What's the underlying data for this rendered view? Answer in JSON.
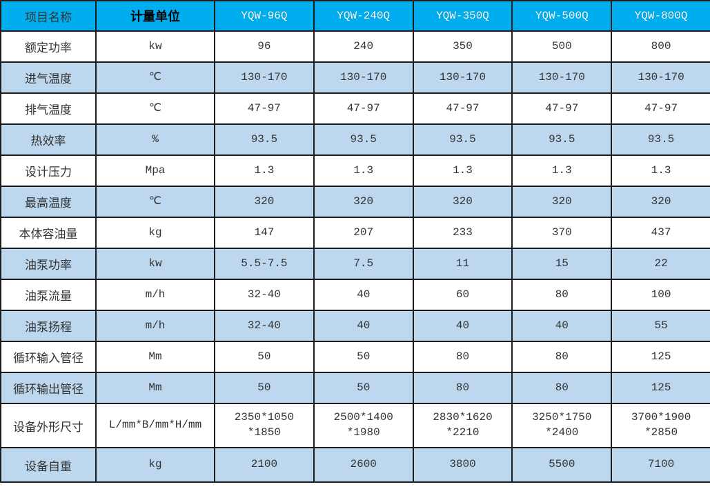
{
  "page": {
    "background": "#ffffff"
  },
  "colors": {
    "header_bg": "#00ADEF",
    "header_model_text": "#ffffff",
    "header_name_text": "#333333",
    "header_unit_text": "#000000",
    "row_white_bg": "#ffffff",
    "row_blue_bg": "#BDD7EE",
    "border": "#1c1c1c",
    "body_text": "#333333"
  },
  "chart_data": {
    "type": "table",
    "title": "",
    "columns": [
      "项目名称",
      "计量单位",
      "YQW-96Q",
      "YQW-240Q",
      "YQW-350Q",
      "YQW-500Q",
      "YQW-800Q"
    ],
    "rows": [
      {
        "label": "额定功率",
        "unit": "kw",
        "values": [
          "96",
          "240",
          "350",
          "500",
          "800"
        ]
      },
      {
        "label": "进气温度",
        "unit": "℃",
        "values": [
          "130-170",
          "130-170",
          "130-170",
          "130-170",
          "130-170"
        ]
      },
      {
        "label": "排气温度",
        "unit": "℃",
        "values": [
          "47-97",
          "47-97",
          "47-97",
          "47-97",
          "47-97"
        ]
      },
      {
        "label": "热效率",
        "unit": "%",
        "values": [
          "93.5",
          "93.5",
          "93.5",
          "93.5",
          "93.5"
        ]
      },
      {
        "label": "设计压力",
        "unit": "Mpa",
        "values": [
          "1.3",
          "1.3",
          "1.3",
          "1.3",
          "1.3"
        ]
      },
      {
        "label": "最高温度",
        "unit": "℃",
        "values": [
          "320",
          "320",
          "320",
          "320",
          "320"
        ]
      },
      {
        "label": "本体容油量",
        "unit": "kg",
        "values": [
          "147",
          "207",
          "233",
          "370",
          "437"
        ]
      },
      {
        "label": "油泵功率",
        "unit": "kw",
        "values": [
          "5.5-7.5",
          "7.5",
          "11",
          "15",
          "22"
        ]
      },
      {
        "label": "油泵流量",
        "unit": "m/h",
        "values": [
          "32-40",
          "40",
          "60",
          "80",
          "100"
        ]
      },
      {
        "label": "油泵扬程",
        "unit": "m/h",
        "values": [
          "32-40",
          "40",
          "40",
          "40",
          "55"
        ]
      },
      {
        "label": "循环输入管径",
        "unit": "Mm",
        "values": [
          "50",
          "50",
          "80",
          "80",
          "125"
        ]
      },
      {
        "label": "循环输出管径",
        "unit": "Mm",
        "values": [
          "50",
          "50",
          "80",
          "80",
          "125"
        ]
      },
      {
        "label": "设备外形尺寸",
        "unit": "L/mm*B/mm*H/mm",
        "values": [
          "2350*1050\n*1850",
          "2500*1400\n*1980",
          "2830*1620\n*2210",
          "3250*1750\n*2400",
          "3700*1900\n*2850"
        ],
        "tall": true
      },
      {
        "label": "设备自重",
        "unit": "kg",
        "values": [
          "2100",
          "2600",
          "3800",
          "5500",
          "7100"
        ],
        "last": true
      }
    ]
  }
}
